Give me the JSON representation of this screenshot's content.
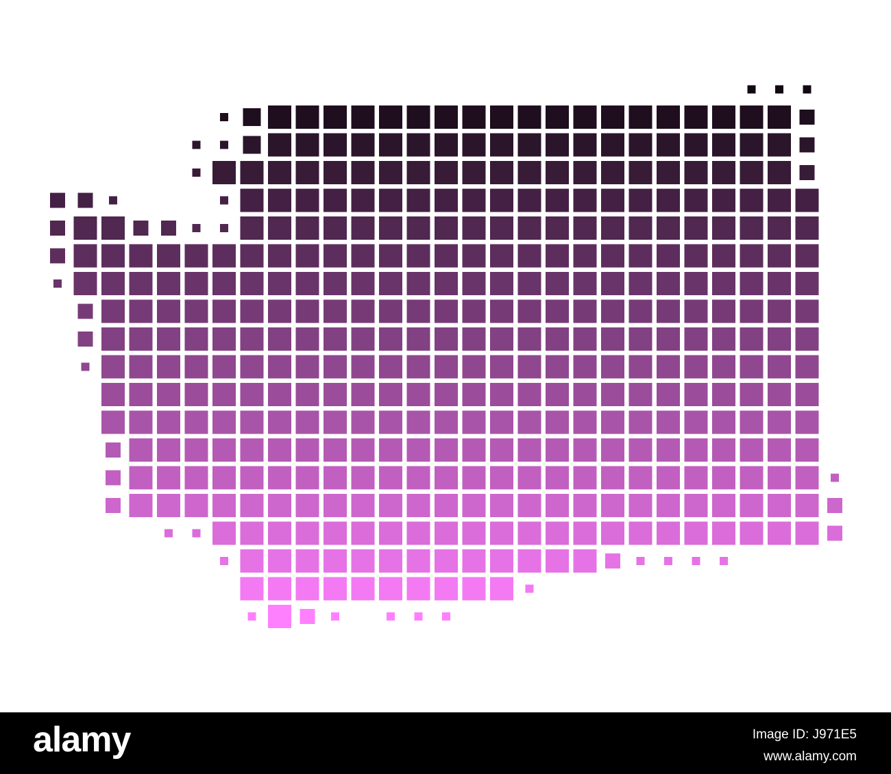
{
  "footer": {
    "logo": "alamy",
    "image_id": "Image ID: J971E5",
    "url": "www.alamy.com"
  }
}
